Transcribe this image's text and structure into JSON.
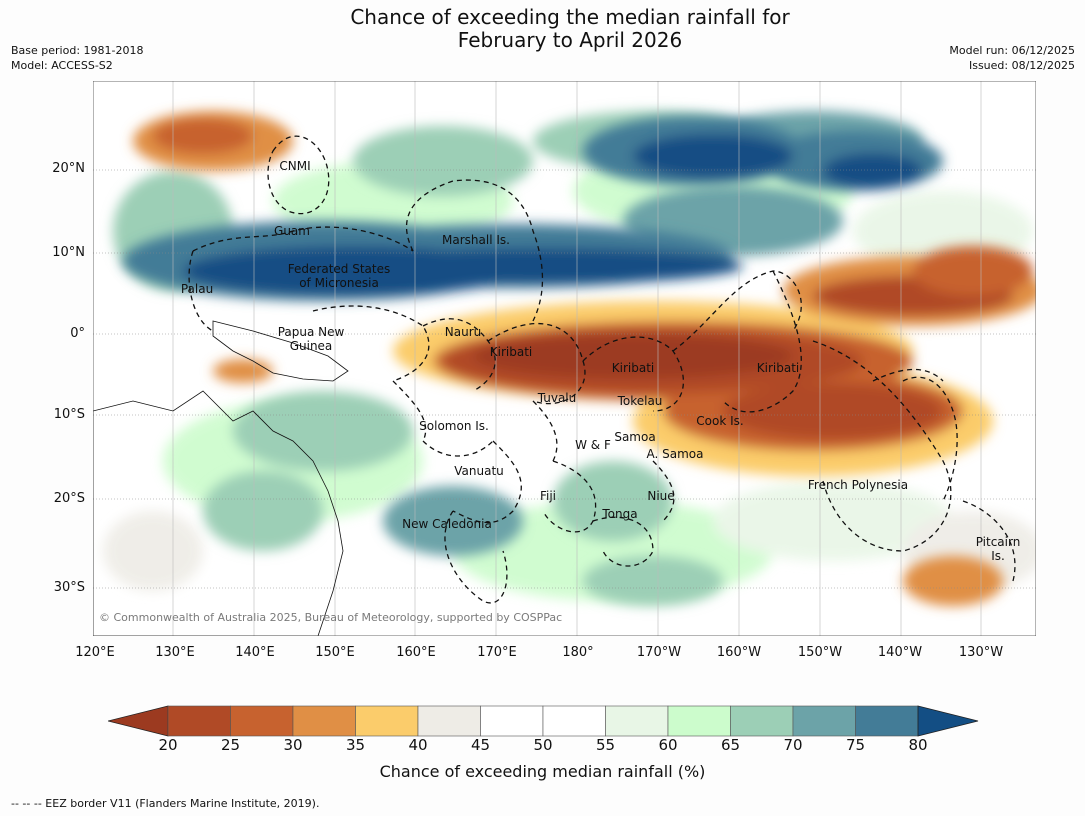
{
  "title": {
    "line1": "Chance of exceeding the median rainfall for",
    "line2": "February to April 2026"
  },
  "meta_left": {
    "base_period": "Base period: 1981-2018",
    "model": "Model: ACCESS-S2"
  },
  "meta_right": {
    "model_run": "Model run: 06/12/2025",
    "issued": "Issued: 08/12/2025"
  },
  "map": {
    "latitude_labels": [
      "20°N",
      "10°N",
      "0°",
      "10°S",
      "20°S",
      "30°S"
    ],
    "longitude_labels": [
      "120°E",
      "130°E",
      "140°E",
      "150°E",
      "160°E",
      "170°E",
      "180°",
      "170°W",
      "160°W",
      "150°W",
      "140°W",
      "130°W"
    ],
    "regions": {
      "cnmi": "CNMI",
      "guam": "Guam",
      "marshall": "Marshall Is.",
      "fsm_1": "Federated States",
      "fsm_2": "of Micronesia",
      "palau": "Palau",
      "png_1": "Papua New",
      "png_2": "Guinea",
      "nauru": "Nauru",
      "kiribati_w": "Kiribati",
      "kiribati_c": "Kiribati",
      "kiribati_e": "Kiribati",
      "tuvalu": "Tuvalu",
      "tokelau": "Tokelau",
      "cook": "Cook Is.",
      "solomon": "Solomon Is.",
      "samoa": "Samoa",
      "wf": "W & F",
      "asamoa": "A. Samoa",
      "vanuatu": "Vanuatu",
      "fiji": "Fiji",
      "niue": "Niue",
      "tonga": "Tonga",
      "frpoly": "French Polynesia",
      "newcal": "New Caledonia",
      "pitcairn_1": "Pitcairn",
      "pitcairn_2": "Is."
    },
    "copyright": "© Commonwealth of Australia 2025, Bureau of Meteorology, supported by COSPPac"
  },
  "colorbar": {
    "ticks": [
      "20",
      "25",
      "30",
      "35",
      "40",
      "45",
      "50",
      "55",
      "60",
      "65",
      "70",
      "75",
      "80"
    ],
    "colors": [
      "#9c3a20",
      "#b04a26",
      "#c7622f",
      "#e08f45",
      "#fbcc6b",
      "#eeece6",
      "#ffffff",
      "#ffffff",
      "#e8f6e6",
      "#ccfccc",
      "#9ccfb6",
      "#6ca3a8",
      "#437c97",
      "#134e84"
    ],
    "title": "Chance of exceeding median rainfall (%)"
  },
  "footnote": "--  --  -- EEZ border V11 (Flanders Marine Institute, 2019)."
}
